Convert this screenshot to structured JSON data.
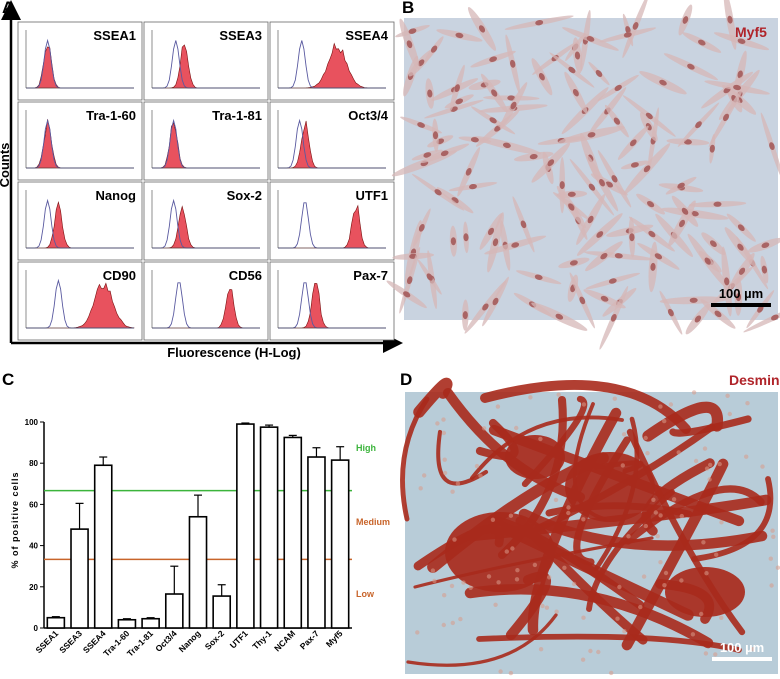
{
  "panels": {
    "a": {
      "letter": "A",
      "ylabel": "Counts",
      "xlabel": "Fluorescence (H-Log)",
      "histograms": [
        {
          "label": "SSEA1"
        },
        {
          "label": "SSEA3"
        },
        {
          "label": "SSEA4"
        },
        {
          "label": "Tra-1-60"
        },
        {
          "label": "Tra-1-81"
        },
        {
          "label": "Oct3/4"
        },
        {
          "label": "Nanog"
        },
        {
          "label": "Sox-2"
        },
        {
          "label": "UTF1"
        },
        {
          "label": "CD90"
        },
        {
          "label": "CD56"
        },
        {
          "label": "Pax-7"
        }
      ]
    },
    "b": {
      "letter": "B",
      "stain": "Myf5",
      "scale": "100 µm"
    },
    "c": {
      "letter": "C"
    },
    "d": {
      "letter": "D",
      "stain": "Desmin",
      "scale": "100 µm"
    }
  },
  "colors": {
    "histogram_fill": "#e8525e",
    "isotype_line": "#5a5aa0",
    "high_line": "#3cb43c",
    "medium_line": "#c8642a",
    "stain_label": "#b0242a",
    "myf5_background": "#c9d3e0",
    "desmin_background": "#b8ccd8",
    "desmin_stain": "#a82a1c"
  },
  "chart_data": {
    "type": "bar",
    "ylabel": "% of positive cells",
    "ylim": [
      0,
      100
    ],
    "yticks": [
      "0",
      "20",
      "40",
      "60",
      "80",
      "100"
    ],
    "categories": [
      "SSEA1",
      "SSEA3",
      "SSEA4",
      "Tra-1-60",
      "Tra-1-81",
      "Oct3/4",
      "Nanog",
      "Sox-2",
      "UTF1",
      "Thy-1",
      "NCAM",
      "Pax-7",
      "Myf5"
    ],
    "values": [
      5,
      48,
      79,
      4,
      4.5,
      16.5,
      54,
      15.5,
      99,
      97.5,
      92.5,
      83,
      81.5
    ],
    "errors": [
      0.5,
      12.5,
      4,
      0.5,
      0.5,
      13.5,
      10.5,
      5.5,
      0.5,
      1,
      1,
      4.5,
      6.5
    ],
    "thresholds": [
      {
        "name": "High",
        "value": 66.7
      },
      {
        "name": "Medium",
        "value": 33.3
      },
      {
        "name": "Low",
        "value": 0
      }
    ]
  }
}
